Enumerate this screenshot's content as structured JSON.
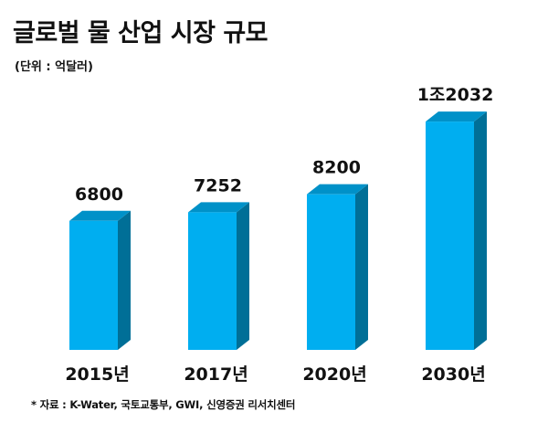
{
  "title": "글로벌 물 산업 시장 규모",
  "unit": "(단위 : 억달러)",
  "source": "* 자료 : K-Water, 국토교통부, GWI, 신영증권 리서치센터",
  "colors": {
    "front": "#00aef0",
    "side": "#006f97",
    "top": "#0091c8"
  },
  "chart_data": {
    "type": "bar",
    "categories": [
      "2015년",
      "2017년",
      "2020년",
      "2030년"
    ],
    "values": [
      6800,
      7252,
      8200,
      12032
    ],
    "data_labels": [
      "6800",
      "7252",
      "8200",
      "1조2032"
    ],
    "xlabel": "",
    "ylabel": "",
    "grid": false,
    "legend": "none"
  }
}
